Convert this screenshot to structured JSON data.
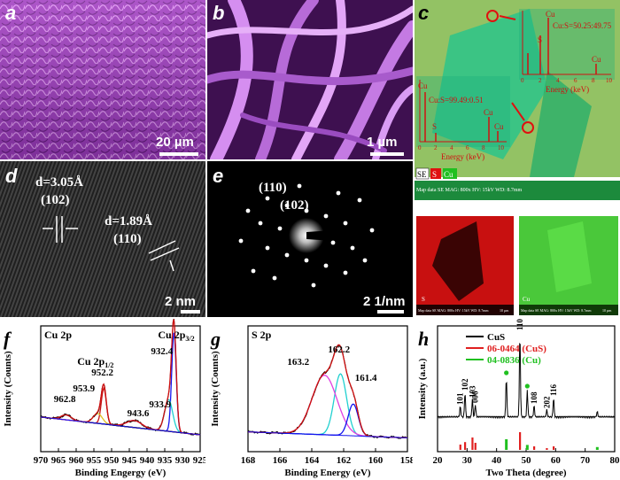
{
  "panels": {
    "a": {
      "label": "a",
      "scale": "20 µm"
    },
    "b": {
      "label": "b",
      "scale": "1 µm"
    },
    "c": {
      "label": "c",
      "spec1": {
        "element_labels": [
          "Cu",
          "S",
          "Cu"
        ],
        "ratio": "Cu:S=50.25:49.75",
        "xlabel": "Energy (keV)",
        "ticks": [
          "0",
          "2",
          "4",
          "6",
          "8",
          "10"
        ]
      },
      "spec2": {
        "element_labels": [
          "Cu",
          "S",
          "Cu",
          "Cu"
        ],
        "ratio": "Cu:S=99.49:0.51",
        "xlabel": "Energy (keV)",
        "ticks": [
          "0",
          "2",
          "4",
          "6",
          "8",
          "10"
        ]
      },
      "legend": [
        "SE",
        "S",
        "Cu"
      ],
      "footer": "Map data     SE   MAG: 800x  HV: 15kV  WD: 8.7mm",
      "map_s_label": "S",
      "map_cu_label": "Cu",
      "map_footer": "Map data   SE  MAG: 800x  HV: 15kV  WD: 8.7mm",
      "map_scale": "10 µm"
    },
    "d": {
      "label": "d",
      "d1": "d=3.05Å",
      "h1": "(102)",
      "d2": "d=1.89Å",
      "h2": "(110)",
      "scale": "2 nm"
    },
    "e": {
      "label": "e",
      "h1": "(110)",
      "h2": "(102)",
      "scale": "2 1/nm"
    }
  },
  "chart_data": [
    {
      "panel": "f",
      "type": "line",
      "title": "Cu 2p",
      "xlabel": "Binding Engergy (eV)",
      "ylabel": "Intensity (Counts)",
      "xlim": [
        970,
        925
      ],
      "xticks": [
        970,
        965,
        960,
        955,
        950,
        945,
        940,
        935,
        930,
        925
      ],
      "annotations": [
        {
          "text": "Cu 2p",
          "sub": "1/2",
          "x": 952.2
        },
        {
          "text": "952.2",
          "x": 952.2
        },
        {
          "text": "953.9",
          "x": 953.9
        },
        {
          "text": "943.6",
          "x": 943.6
        },
        {
          "text": "962.8",
          "x": 962.8
        },
        {
          "text": "Cu 2p",
          "sub": "3/2",
          "x": 932.4
        },
        {
          "text": "932.4",
          "x": 932.4
        },
        {
          "text": "933.9",
          "x": 933.9
        }
      ],
      "peaks": [
        {
          "x": 932.4,
          "height": 1.0,
          "width": 0.9,
          "color": "#1515ee"
        },
        {
          "x": 933.9,
          "height": 0.32,
          "width": 1.6,
          "color": "#20d0d0"
        },
        {
          "x": 952.2,
          "height": 0.36,
          "width": 1.0,
          "color": "#c81414"
        },
        {
          "x": 953.9,
          "height": 0.1,
          "width": 1.8,
          "color": "#e0c020"
        },
        {
          "x": 943.6,
          "height": 0.07,
          "width": 3.0,
          "color": "#e040e0"
        },
        {
          "x": 962.8,
          "height": 0.05,
          "width": 2.0,
          "color": "#000000"
        }
      ]
    },
    {
      "panel": "g",
      "type": "line",
      "title": "S 2p",
      "xlabel": "Binding Energy (eV)",
      "ylabel": "Intensity (Counts)",
      "xlim": [
        168,
        158
      ],
      "xticks": [
        168,
        166,
        164,
        162,
        160,
        158
      ],
      "annotations": [
        {
          "text": "162.2",
          "x": 162.2
        },
        {
          "text": "163.2",
          "x": 163.2
        },
        {
          "text": "161.4",
          "x": 161.4
        }
      ],
      "peaks": [
        {
          "x": 162.2,
          "height": 0.62,
          "width": 0.55,
          "color": "#20d0d0"
        },
        {
          "x": 163.2,
          "height": 0.6,
          "width": 1.1,
          "color": "#e040e0"
        },
        {
          "x": 161.4,
          "height": 0.32,
          "width": 0.45,
          "color": "#1515ee"
        }
      ]
    },
    {
      "panel": "h",
      "type": "line",
      "xlabel": "Two Theta (degree)",
      "ylabel": "Intensity (a.u.)",
      "xlim": [
        20,
        80
      ],
      "xticks": [
        20,
        30,
        40,
        50,
        60,
        70,
        80
      ],
      "legend": [
        {
          "name": "CuS",
          "color": "#000000"
        },
        {
          "name": "06-0464 (CuS)",
          "color": "#e02020"
        },
        {
          "name": "04-0836 (Cu)",
          "color": "#20c020"
        }
      ],
      "cus_peaks": [
        {
          "x": 27.7,
          "h": 0.12,
          "label": "101"
        },
        {
          "x": 29.3,
          "h": 0.28,
          "label": "102"
        },
        {
          "x": 31.8,
          "h": 0.2,
          "label": "103"
        },
        {
          "x": 32.8,
          "h": 0.14,
          "label": "006"
        },
        {
          "x": 43.3,
          "h": 0.45,
          "label": ""
        },
        {
          "x": 47.9,
          "h": 0.96,
          "label": "110"
        },
        {
          "x": 50.4,
          "h": 0.3,
          "label": ""
        },
        {
          "x": 52.7,
          "h": 0.13,
          "label": "108"
        },
        {
          "x": 59.3,
          "h": 0.22,
          "label": "116"
        },
        {
          "x": 57.0,
          "h": 0.08,
          "label": "202"
        },
        {
          "x": 74.1,
          "h": 0.06,
          "label": ""
        }
      ],
      "ref_cus": [
        {
          "x": 27.7,
          "h": 0.15
        },
        {
          "x": 29.3,
          "h": 0.22
        },
        {
          "x": 31.8,
          "h": 0.35
        },
        {
          "x": 32.8,
          "h": 0.2
        },
        {
          "x": 47.9,
          "h": 0.5
        },
        {
          "x": 52.7,
          "h": 0.1
        },
        {
          "x": 59.3,
          "h": 0.1
        },
        {
          "x": 57.0,
          "h": 0.05
        }
      ],
      "ref_cu": [
        {
          "x": 43.3,
          "h": 0.3
        },
        {
          "x": 50.4,
          "h": 0.14
        },
        {
          "x": 74.1,
          "h": 0.08
        }
      ]
    }
  ]
}
